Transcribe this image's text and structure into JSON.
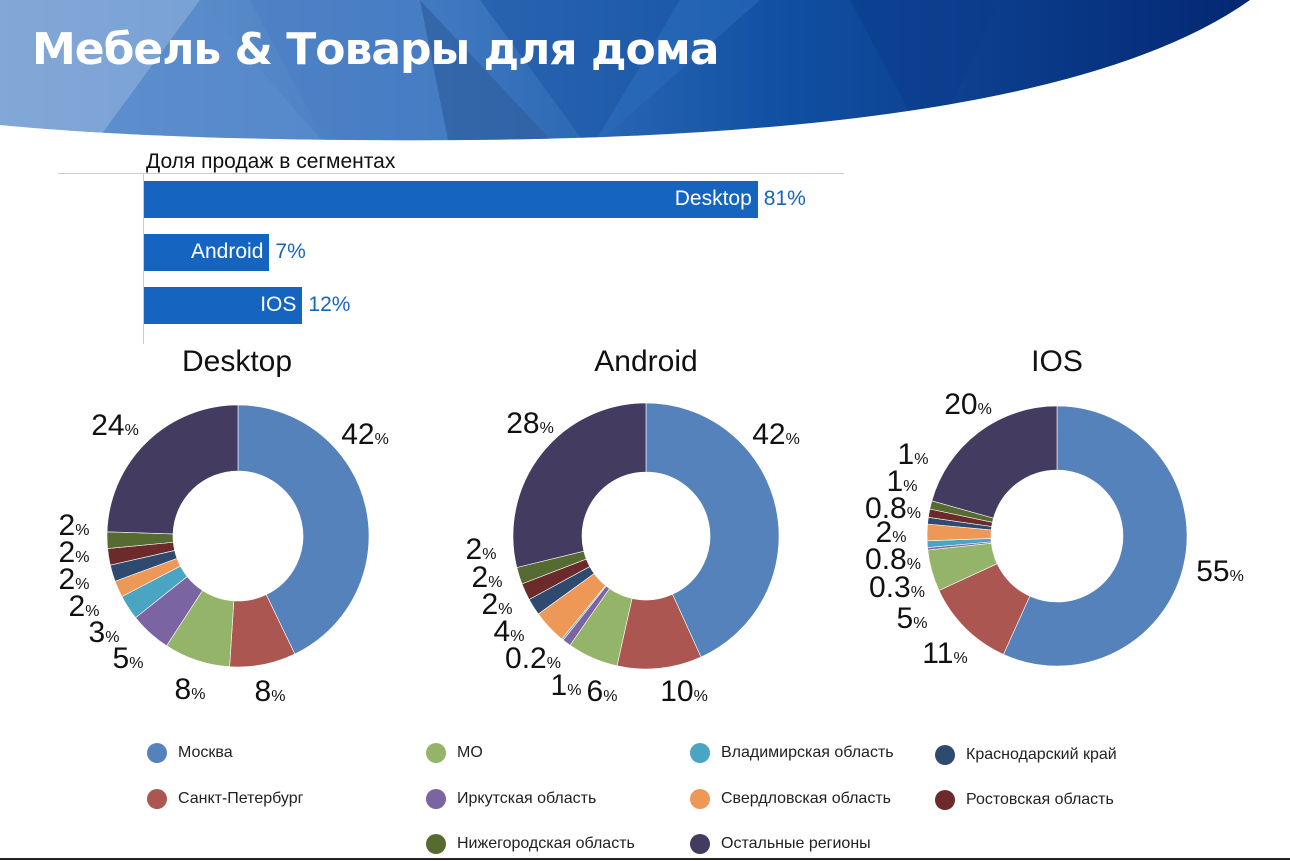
{
  "title": "Мебель & Товары для дома",
  "bar_chart": {
    "title": "Доля продаж в сегментах",
    "type": "bar",
    "orientation": "horizontal",
    "bars": [
      {
        "label": "Desktop",
        "value": 81,
        "value_label": "81%"
      },
      {
        "label": "Android",
        "value": 7,
        "value_label": "7%"
      },
      {
        "label": "IOS",
        "value": 12,
        "value_label": "12%"
      }
    ],
    "color": "#1565c0"
  },
  "chart_data": [
    {
      "type": "pie",
      "title": "Desktop",
      "categories": [
        "Москва",
        "Санкт-Петербург",
        "МО",
        "Иркутская область",
        "Владимирская область",
        "Свердловская область",
        "Краснодарский край",
        "Ростовская область",
        "Нижегородская область",
        "Остальные регионы"
      ],
      "values": [
        42,
        8,
        8,
        5,
        3,
        2,
        2,
        2,
        2,
        24
      ],
      "labels": [
        "42",
        "8",
        "8",
        "5",
        "3",
        "2",
        "2",
        "2",
        "2",
        "24"
      ]
    },
    {
      "type": "pie",
      "title": "Android",
      "categories": [
        "Москва",
        "Санкт-Петербург",
        "МО",
        "Иркутская область",
        "Владимирская область",
        "Свердловская область",
        "Краснодарский край",
        "Ростовская область",
        "Нижегородская область",
        "Остальные регионы"
      ],
      "values": [
        42,
        10,
        6,
        1,
        0.2,
        4,
        2,
        2,
        2,
        28
      ],
      "labels": [
        "42",
        "10",
        "6",
        "1",
        "0.2",
        "4",
        "2",
        "2",
        "2",
        "28"
      ]
    },
    {
      "type": "pie",
      "title": "IOS",
      "categories": [
        "Москва",
        "Санкт-Петербург",
        "МО",
        "Иркутская область",
        "Владимирская область",
        "Свердловская область",
        "Краснодарский край",
        "Ростовская область",
        "Нижегородская область",
        "Остальные регионы"
      ],
      "values": [
        55,
        11,
        5,
        0.3,
        0.8,
        2,
        0.8,
        1,
        1,
        20
      ],
      "labels": [
        "55",
        "11",
        "5",
        "0.3",
        "0.8",
        "2",
        "0.8",
        "1",
        "1",
        "20"
      ]
    }
  ],
  "percent_sign": "%",
  "legend": [
    {
      "label": "Москва",
      "color": "#5582bb"
    },
    {
      "label": "Санкт-Петербург",
      "color": "#ac5651"
    },
    {
      "label": "МО",
      "color": "#94b46a"
    },
    {
      "label": "Иркутская область",
      "color": "#7a64a1"
    },
    {
      "label": "Владимирская область",
      "color": "#4aa5c3"
    },
    {
      "label": "Свердловская область",
      "color": "#ee9858"
    },
    {
      "label": "Краснодарский край",
      "color": "#2e4a6e"
    },
    {
      "label": "Ростовская область",
      "color": "#6c2a2a"
    },
    {
      "label": "Нижегородская область",
      "color": "#566b32"
    },
    {
      "label": "Остальные регионы",
      "color": "#433b60"
    }
  ]
}
